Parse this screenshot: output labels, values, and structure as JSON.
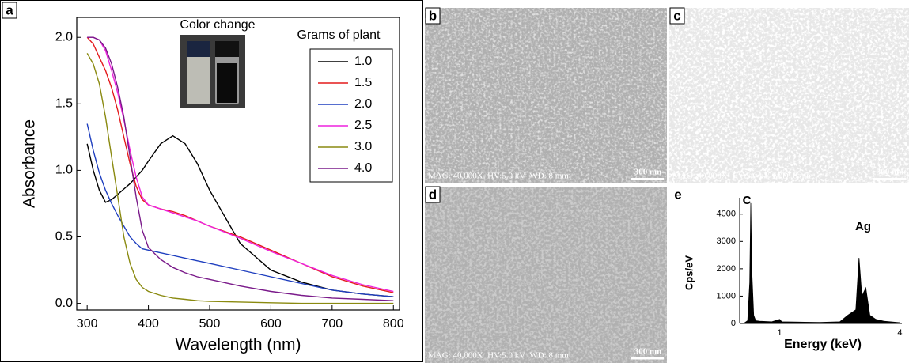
{
  "chart_data": [
    {
      "type": "line",
      "label": "a",
      "inset_title": "Color change",
      "legend_title": "Grams of plant",
      "x_label": "Wavelength (nm)",
      "y_label": "Absorbance",
      "x": [
        300,
        310,
        320,
        330,
        340,
        350,
        360,
        370,
        380,
        390,
        400,
        420,
        440,
        460,
        480,
        500,
        550,
        600,
        650,
        700,
        750,
        800
      ],
      "series": [
        {
          "name": "1.0",
          "color": "#000000",
          "values": [
            1.2,
            1.0,
            0.85,
            0.76,
            0.78,
            0.82,
            0.86,
            0.9,
            0.95,
            1.0,
            1.07,
            1.2,
            1.26,
            1.2,
            1.05,
            0.85,
            0.45,
            0.25,
            0.16,
            0.1,
            0.07,
            0.05
          ]
        },
        {
          "name": "1.5",
          "color": "#e41a1c",
          "values": [
            2.0,
            1.95,
            1.85,
            1.75,
            1.62,
            1.45,
            1.25,
            1.05,
            0.88,
            0.78,
            0.74,
            0.71,
            0.69,
            0.66,
            0.62,
            0.58,
            0.5,
            0.4,
            0.3,
            0.2,
            0.13,
            0.08
          ]
        },
        {
          "name": "2.0",
          "color": "#1f3fbf",
          "values": [
            1.35,
            1.15,
            0.98,
            0.85,
            0.75,
            0.66,
            0.58,
            0.5,
            0.45,
            0.41,
            0.4,
            0.38,
            0.36,
            0.34,
            0.32,
            0.3,
            0.25,
            0.2,
            0.15,
            0.1,
            0.07,
            0.05
          ]
        },
        {
          "name": "2.5",
          "color": "#ee22dd",
          "values": [
            2.0,
            2.0,
            1.98,
            1.9,
            1.75,
            1.58,
            1.38,
            1.15,
            0.95,
            0.8,
            0.74,
            0.71,
            0.68,
            0.65,
            0.62,
            0.58,
            0.49,
            0.39,
            0.3,
            0.21,
            0.14,
            0.09
          ]
        },
        {
          "name": "3.0",
          "color": "#8a8a10",
          "values": [
            1.88,
            1.8,
            1.65,
            1.4,
            1.1,
            0.8,
            0.5,
            0.3,
            0.18,
            0.12,
            0.09,
            0.06,
            0.04,
            0.03,
            0.02,
            0.015,
            0.01,
            0.005,
            0,
            0,
            0,
            0
          ]
        },
        {
          "name": "4.0",
          "color": "#7a1a8a",
          "values": [
            2.0,
            2.0,
            1.98,
            1.92,
            1.8,
            1.62,
            1.4,
            1.1,
            0.8,
            0.55,
            0.42,
            0.33,
            0.27,
            0.23,
            0.2,
            0.18,
            0.13,
            0.09,
            0.06,
            0.04,
            0.03,
            0.02
          ]
        }
      ],
      "xlim": [
        283,
        810
      ],
      "ylim": [
        -0.05,
        2.15
      ],
      "xticks": [
        300,
        400,
        500,
        600,
        700,
        800
      ],
      "yticks": [
        {
          "value": 0,
          "label": "0.0"
        },
        {
          "value": 0.5,
          "label": "0.5"
        },
        {
          "value": 1,
          "label": "1.0"
        },
        {
          "value": 1.5,
          "label": "1.5"
        },
        {
          "value": 2,
          "label": "2.0"
        }
      ]
    },
    {
      "type": "area",
      "label": "e",
      "x_label": "Energy (keV)",
      "y_label": "Cps/eV",
      "color": "#000000",
      "annotations": [
        "C",
        "Ag"
      ],
      "x": [
        0.1,
        0.2,
        0.25,
        0.277,
        0.3,
        0.35,
        0.4,
        0.5,
        0.8,
        1.0,
        1.05,
        1.5,
        2.0,
        2.5,
        2.7,
        2.9,
        2.98,
        3.05,
        3.15,
        3.25,
        3.4,
        3.6,
        4.0
      ],
      "values": [
        0,
        100,
        1500,
        4400,
        2000,
        300,
        100,
        80,
        60,
        150,
        60,
        50,
        40,
        60,
        300,
        500,
        2400,
        1000,
        1300,
        300,
        150,
        80,
        30
      ],
      "xlim": [
        0,
        4.05
      ],
      "ylim": [
        0,
        4600
      ],
      "xticks": [
        1,
        4
      ],
      "yticks": [
        0,
        1000,
        2000,
        3000,
        4000
      ]
    }
  ],
  "images": [
    {
      "label": "b",
      "caption": "MAG: 40,000X  HV:5.0 kV  WD: 8 mm",
      "scale_bar": "300 nm"
    },
    {
      "label": "c",
      "caption": "MAG: 40,000X  HV:5.0 kV  WD: 8 mm",
      "scale_bar": "300 nm"
    },
    {
      "label": "d",
      "caption": "MAG: 40,000X  HV:5.0 kV  WD: 8 mm",
      "scale_bar": "300 nm"
    }
  ]
}
